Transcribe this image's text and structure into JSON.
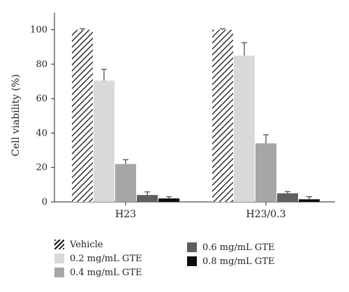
{
  "chart_data": {
    "type": "bar",
    "title": "",
    "xlabel": "",
    "ylabel": "Cell viability (%)",
    "ylim": [
      0,
      110
    ],
    "yticks": [
      0,
      20,
      40,
      60,
      80,
      100
    ],
    "categories": [
      "H23",
      "H23/0.3"
    ],
    "series": [
      {
        "name": "Vehicle",
        "color": "#ffffff",
        "pattern": "hatch",
        "values": [
          100,
          100
        ],
        "errors": [
          0.6,
          0.6
        ]
      },
      {
        "name": "0.2 mg/mL GTE",
        "color": "#d9d9d9",
        "values": [
          70.5,
          85
        ],
        "errors": [
          6.5,
          7.5
        ]
      },
      {
        "name": "0.4 mg/mL GTE",
        "color": "#a6a6a6",
        "values": [
          22,
          34
        ],
        "errors": [
          2.5,
          5
        ]
      },
      {
        "name": "0.6 mg/mL GTE",
        "color": "#5f5f5f",
        "values": [
          4,
          5
        ],
        "errors": [
          1.8,
          1
        ]
      },
      {
        "name": "0.8 mg/mL GTE",
        "color": "#0d0d0d",
        "values": [
          2,
          1.5
        ],
        "errors": [
          1,
          1.5
        ]
      }
    ],
    "legend_placement": "bottom"
  }
}
